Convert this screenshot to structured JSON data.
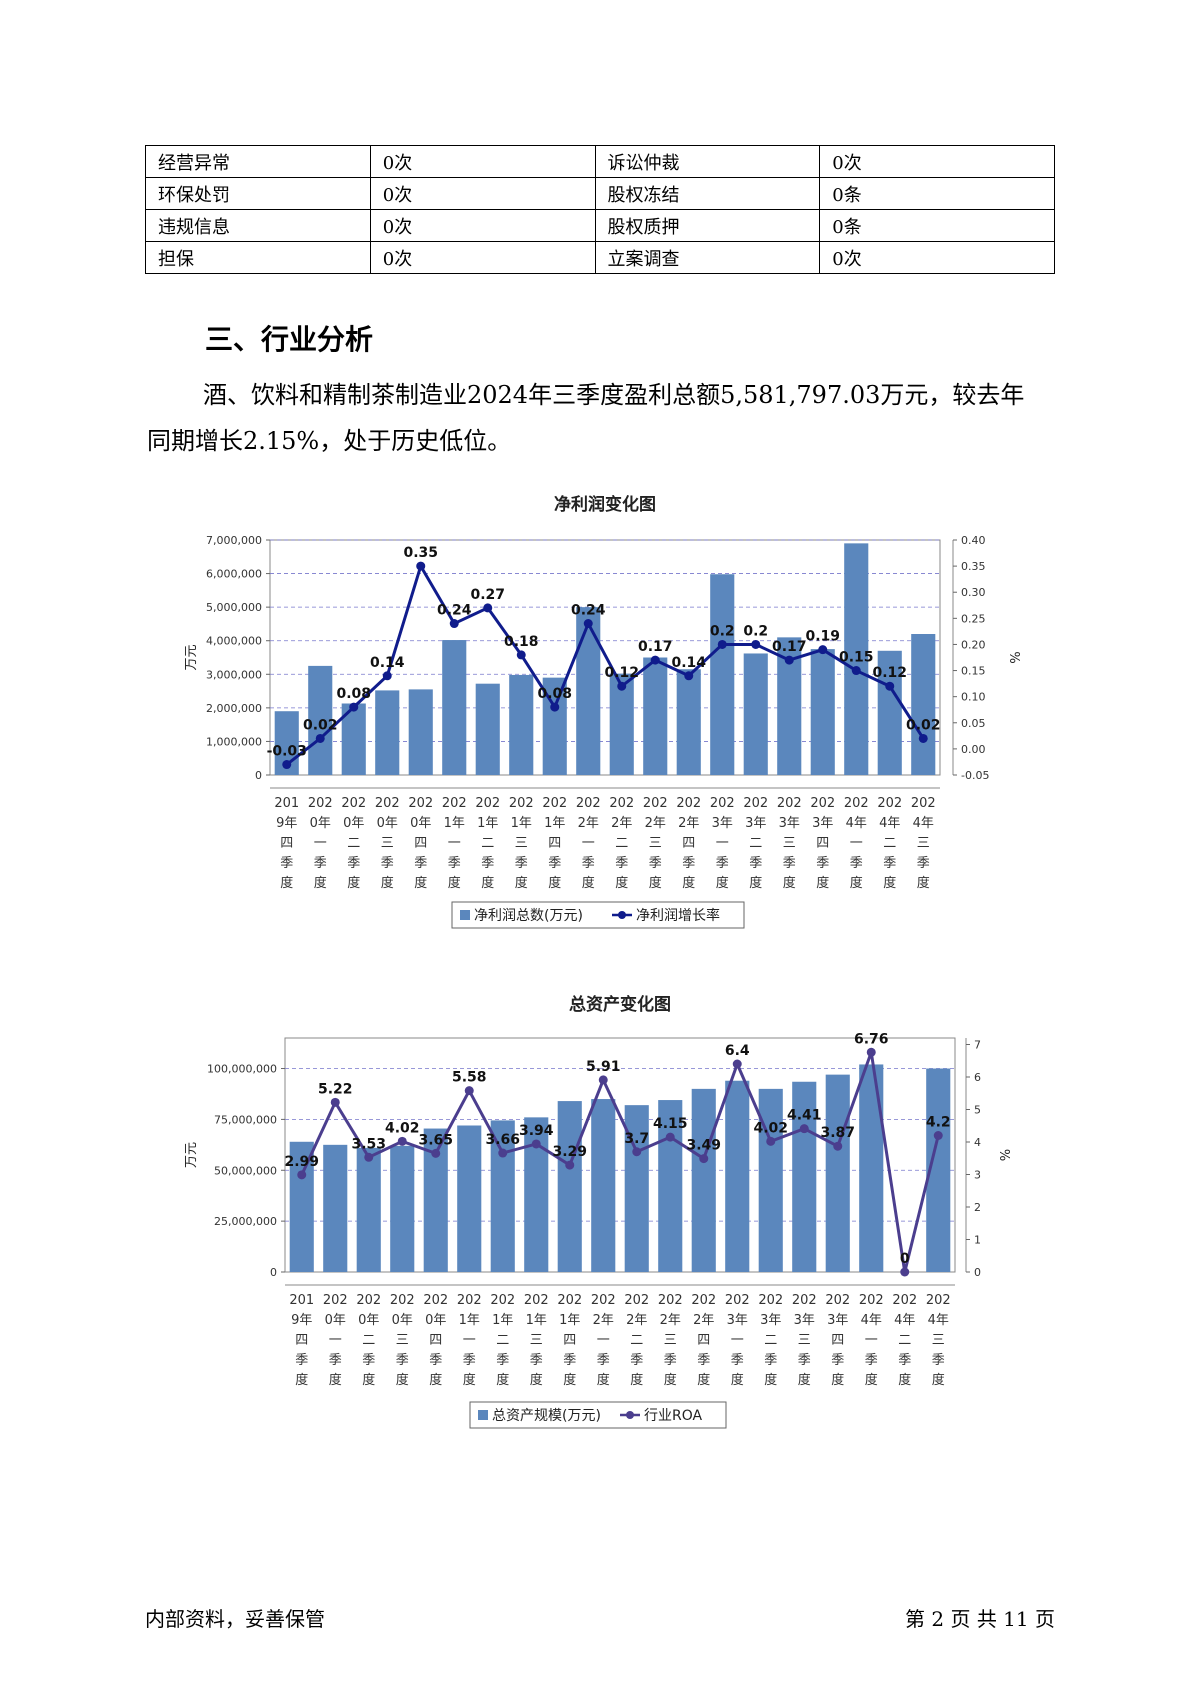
{
  "risk_table": {
    "rows": [
      [
        {
          "label": "经营异常",
          "value": "0次"
        },
        {
          "label": "诉讼仲裁",
          "value": "0次"
        }
      ],
      [
        {
          "label": "环保处罚",
          "value": "0次"
        },
        {
          "label": "股权冻结",
          "value": "0条"
        }
      ],
      [
        {
          "label": "违规信息",
          "value": "0次"
        },
        {
          "label": "股权质押",
          "value": "0条"
        }
      ],
      [
        {
          "label": "担保",
          "value": "0次"
        },
        {
          "label": "立案调查",
          "value": "0次"
        }
      ]
    ]
  },
  "section": {
    "heading": "三、行业分析",
    "paragraph": "酒、饮料和精制茶制造业2024年三季度盈利总额5,581,797.03万元，较去年同期增长2.15%，处于历史低位。"
  },
  "chart_data": [
    {
      "type": "bar",
      "title": "净利润变化图",
      "ylabel": "万元",
      "y2label": "%",
      "ylim": [
        0,
        7000000
      ],
      "y2lim": [
        -0.05,
        0.4
      ],
      "yticks": [
        "0",
        "1,000,000",
        "2,000,000",
        "3,000,000",
        "4,000,000",
        "5,000,000",
        "6,000,000",
        "7,000,000"
      ],
      "y2ticks": [
        "-0.05",
        "0.00",
        "0.05",
        "0.10",
        "0.15",
        "0.20",
        "0.25",
        "0.30",
        "0.35",
        "0.40"
      ],
      "categories": [
        "2019年四季度",
        "2020年一季度",
        "2020年二季度",
        "2020年三季度",
        "2020年四季度",
        "2021年一季度",
        "2021年二季度",
        "2021年三季度",
        "2021年四季度",
        "2022年一季度",
        "2022年二季度",
        "2022年三季度",
        "2022年四季度",
        "2023年一季度",
        "2023年二季度",
        "2023年三季度",
        "2023年四季度",
        "2024年一季度",
        "2024年二季度",
        "2024年三季度"
      ],
      "series": [
        {
          "name": "净利润总数(万元)",
          "kind": "bar",
          "axis": "left",
          "color": "#5b87bd",
          "values": [
            1900000,
            3250000,
            2130000,
            2520000,
            2550000,
            4020000,
            2720000,
            2980000,
            2900000,
            5000000,
            3020000,
            3500000,
            3150000,
            5980000,
            3620000,
            4100000,
            3750000,
            6900000,
            3700000,
            4200000
          ]
        },
        {
          "name": "净利润增长率",
          "kind": "line",
          "axis": "right",
          "color": "#101c8c",
          "values": [
            -0.03,
            0.02,
            0.08,
            0.14,
            0.35,
            0.24,
            0.27,
            0.18,
            0.08,
            0.24,
            0.12,
            0.17,
            0.14,
            0.2,
            0.2,
            0.17,
            0.19,
            0.15,
            0.12,
            0.02
          ],
          "labels": [
            "-0.03",
            "0.02",
            "0.08",
            "0.14",
            "0.35",
            "0.24",
            "0.27",
            "0.18",
            "0.08",
            "0.24",
            "0.12",
            "0.17",
            "0.14",
            "0.2",
            "0.2",
            "0.17",
            "0.19",
            "0.15",
            "0.12",
            "0.02"
          ]
        }
      ],
      "legend": "bottom"
    },
    {
      "type": "bar",
      "title": "总资产变化图",
      "ylabel": "万元",
      "y2label": "%",
      "ylim": [
        0,
        115000000
      ],
      "y2lim": [
        0,
        7.2
      ],
      "yticks": [
        "0",
        "25,000,000",
        "50,000,000",
        "75,000,000",
        "100,000,000"
      ],
      "y2ticks": [
        "0",
        "1",
        "2",
        "3",
        "4",
        "5",
        "6",
        "7"
      ],
      "categories": [
        "2019年四季度",
        "2020年一季度",
        "2020年二季度",
        "2020年三季度",
        "2020年四季度",
        "2021年一季度",
        "2021年二季度",
        "2021年三季度",
        "2021年四季度",
        "2022年一季度",
        "2022年二季度",
        "2022年三季度",
        "2022年四季度",
        "2023年一季度",
        "2023年二季度",
        "2023年三季度",
        "2023年四季度",
        "2024年一季度",
        "2024年二季度",
        "2024年三季度"
      ],
      "series": [
        {
          "name": "总资产规模(万元)",
          "kind": "bar",
          "axis": "left",
          "color": "#5b87bd",
          "values": [
            64000000,
            62500000,
            61000000,
            62000000,
            70500000,
            72000000,
            74500000,
            76000000,
            84000000,
            85000000,
            82000000,
            84500000,
            90000000,
            94000000,
            90000000,
            93500000,
            97000000,
            102000000,
            0,
            100000000
          ]
        },
        {
          "name": "行业ROA",
          "kind": "line",
          "axis": "right",
          "color": "#4b3e8e",
          "values": [
            2.99,
            5.22,
            3.53,
            4.02,
            3.65,
            5.58,
            3.66,
            3.94,
            3.29,
            5.91,
            3.7,
            4.15,
            3.49,
            6.4,
            4.02,
            4.41,
            3.87,
            6.76,
            0,
            4.2
          ],
          "labels": [
            "2.99",
            "5.22",
            "3.53",
            "4.02",
            "3.65",
            "5.58",
            "3.66",
            "3.94",
            "3.29",
            "5.91",
            "3.7",
            "4.15",
            "3.49",
            "6.4",
            "4.02",
            "4.41",
            "3.87",
            "6.76",
            "0",
            "4.2"
          ]
        }
      ],
      "legend": "bottom"
    }
  ],
  "footer": {
    "left": "内部资料，妥善保管",
    "right": "第 2 页   共 11 页"
  }
}
